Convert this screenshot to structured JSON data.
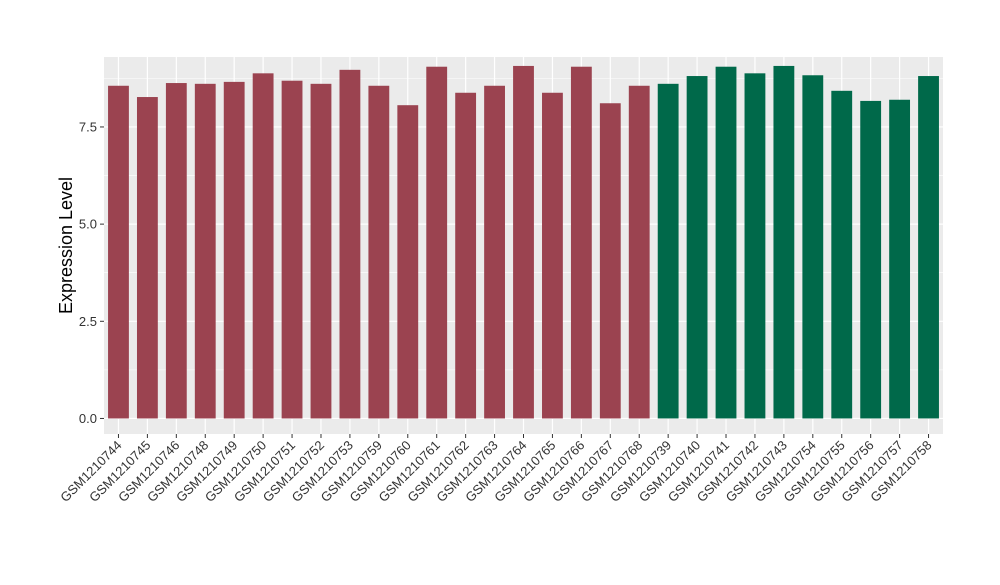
{
  "chart_data": {
    "type": "bar",
    "title": "",
    "xlabel": "",
    "ylabel": "Expression Level",
    "ylim": [
      -0.4,
      9.3
    ],
    "yticks": [
      0.0,
      2.5,
      5.0,
      7.5
    ],
    "ytick_labels": [
      "0.0",
      "2.5",
      "5.0",
      "7.5"
    ],
    "grid": true,
    "background": "#EBEBEB",
    "categories": [
      "GSM1210744",
      "GSM1210745",
      "GSM1210746",
      "GSM1210748",
      "GSM1210749",
      "GSM1210750",
      "GSM1210751",
      "GSM1210752",
      "GSM1210753",
      "GSM1210759",
      "GSM1210760",
      "GSM1210761",
      "GSM1210762",
      "GSM1210763",
      "GSM1210764",
      "GSM1210765",
      "GSM1210766",
      "GSM1210767",
      "GSM1210768",
      "GSM1210739",
      "GSM1210740",
      "GSM1210741",
      "GSM1210742",
      "GSM1210743",
      "GSM1210754",
      "GSM1210755",
      "GSM1210756",
      "GSM1210757",
      "GSM1210758"
    ],
    "values": [
      8.56,
      8.27,
      8.63,
      8.61,
      8.66,
      8.88,
      8.69,
      8.61,
      8.97,
      8.56,
      8.06,
      9.05,
      8.38,
      8.56,
      9.07,
      8.38,
      9.05,
      8.11,
      8.56,
      8.61,
      8.81,
      9.05,
      8.88,
      9.07,
      8.83,
      8.43,
      8.17,
      8.2,
      8.81
    ],
    "groups": [
      {
        "color": "#9B4350",
        "count": 19
      },
      {
        "color": "#00694A",
        "count": 10
      }
    ]
  }
}
